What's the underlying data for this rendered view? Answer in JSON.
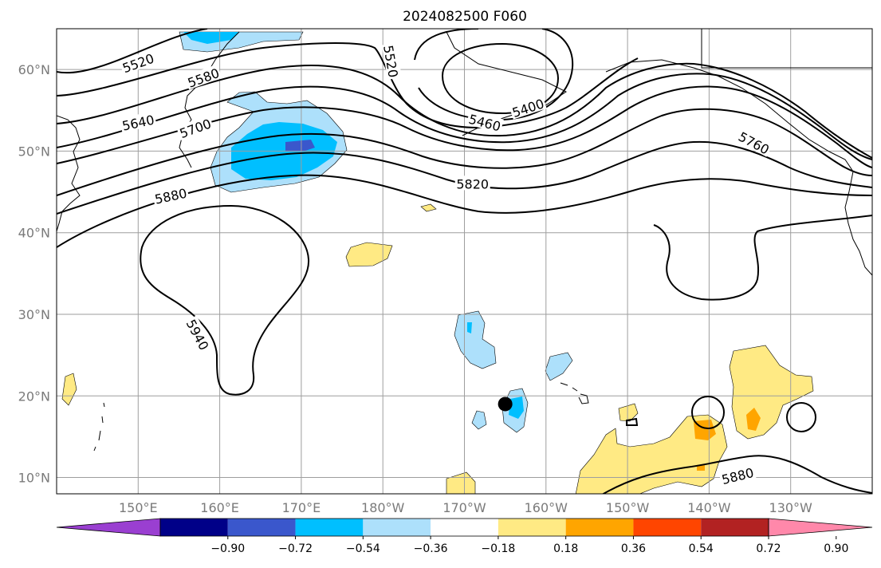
{
  "title": "2024082500 F060",
  "map": {
    "extent": {
      "lon_min": 140,
      "lon_max": 240,
      "lat_min": 8,
      "lat_max": 65
    },
    "lat_ticks": [
      {
        "value": 10,
        "label": "10°N"
      },
      {
        "value": 20,
        "label": "20°N"
      },
      {
        "value": 30,
        "label": "30°N"
      },
      {
        "value": 40,
        "label": "40°N"
      },
      {
        "value": 50,
        "label": "50°N"
      },
      {
        "value": 60,
        "label": "60°N"
      }
    ],
    "lon_ticks": [
      {
        "value": 150,
        "label": "150°E"
      },
      {
        "value": 160,
        "label": "160°E"
      },
      {
        "value": 170,
        "label": "170°E"
      },
      {
        "value": 180,
        "label": "180°W"
      },
      {
        "value": 190,
        "label": "170°W"
      },
      {
        "value": 200,
        "label": "160°W"
      },
      {
        "value": 210,
        "label": "150°W"
      },
      {
        "value": 220,
        "label": "140°W"
      },
      {
        "value": 230,
        "label": "130°W"
      }
    ],
    "contour_labels": [
      {
        "text": "5520",
        "lon": 150,
        "lat": 60.8,
        "angle": -20
      },
      {
        "text": "5580",
        "lon": 158,
        "lat": 59,
        "angle": -20
      },
      {
        "text": "5640",
        "lon": 150,
        "lat": 53.5,
        "angle": -12
      },
      {
        "text": "5700",
        "lon": 157,
        "lat": 52.8,
        "angle": -20
      },
      {
        "text": "5880",
        "lon": 154,
        "lat": 44.5,
        "angle": -12
      },
      {
        "text": "5520",
        "lon": 181,
        "lat": 61,
        "angle": 80
      },
      {
        "text": "5400",
        "lon": 197.8,
        "lat": 55.3,
        "angle": -18
      },
      {
        "text": "5460",
        "lon": 192.5,
        "lat": 53.5,
        "angle": 15
      },
      {
        "text": "5820",
        "lon": 191,
        "lat": 46,
        "angle": 0
      },
      {
        "text": "5760",
        "lon": 225.5,
        "lat": 51,
        "angle": 28
      },
      {
        "text": "5940",
        "lon": 157.3,
        "lat": 27.5,
        "angle": 62
      },
      {
        "text": "5880",
        "lon": 223.5,
        "lat": 10.2,
        "angle": -14
      }
    ],
    "center_marker": {
      "lon": 195,
      "lat": 19
    }
  },
  "colorbar": {
    "colors": [
      "#9a3fd1",
      "#000088",
      "#3a57cc",
      "#00bfff",
      "#ade0fb",
      "#ffffff",
      "#ffea84",
      "#ffa500",
      "#ff4500",
      "#b22222",
      "#ff88aa"
    ],
    "ticks": [
      "−0.90",
      "−0.72",
      "−0.54",
      "−0.36",
      "−0.18",
      "0.18",
      "0.36",
      "0.54",
      "0.72",
      "0.90"
    ]
  }
}
